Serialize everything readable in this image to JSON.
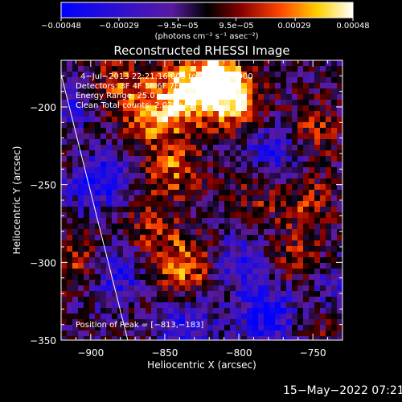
{
  "chart_data": {
    "type": "heatmap",
    "title": "Reconstructed RHESSI Image",
    "xlabel": "Heliocentric X (arcsec)",
    "ylabel": "Heliocentric Y (arcsec)",
    "xlim": [
      -920,
      -730
    ],
    "ylim": [
      -350,
      -170
    ],
    "x_ticks": [
      -900,
      -850,
      -800,
      -750
    ],
    "x_tick_labels": [
      "−900",
      "−850",
      "−800",
      "−750"
    ],
    "y_ticks": [
      -350,
      -300,
      -250,
      -200
    ],
    "y_tick_labels": [
      "−350",
      "−300",
      "−250",
      "−200"
    ],
    "colorbar": {
      "range": [
        -0.00048,
        0.00048
      ],
      "ticks": [
        -0.00048,
        -0.00029,
        -9.5e-05,
        9.5e-05,
        0.00029,
        0.00048
      ],
      "tick_labels": [
        "−0.00048",
        "−0.00029",
        "−9.5e−05",
        "9.5e−05",
        "0.00029",
        "0.00048"
      ],
      "unit_label": "(photons cm⁻² s⁻¹ asec⁻²)",
      "colors": [
        "#0000ff",
        "#5a1aa0",
        "#000000",
        "#8b0000",
        "#ff4500",
        "#ffd000",
        "#ffffff"
      ]
    },
    "annotations": [
      "4−Jul−2013 22:21:16.000 to 22:27:16.000",
      "Detectors: 3F 4F 5F 6F 7F 8F, AIA0",
      "Energy Range: 25.0 − 50.0 keV",
      "Clean    Total counts: 2.02E+02"
    ],
    "peak_label": "Position of Peak = [−813,−183]",
    "peak": [
      -813,
      -183
    ],
    "hot_regions": [
      {
        "x": -815,
        "y": -186,
        "intensity": 1.0
      },
      {
        "x": -835,
        "y": -190,
        "intensity": 0.85
      },
      {
        "x": -858,
        "y": -205,
        "intensity": 0.7
      },
      {
        "x": -880,
        "y": -185,
        "intensity": 0.6
      },
      {
        "x": -800,
        "y": -198,
        "intensity": 0.6
      },
      {
        "x": -845,
        "y": -240,
        "intensity": 0.65
      },
      {
        "x": -835,
        "y": -303,
        "intensity": 0.8
      },
      {
        "x": -860,
        "y": -280,
        "intensity": 0.45
      },
      {
        "x": -910,
        "y": -300,
        "intensity": 0.5
      },
      {
        "x": -750,
        "y": -215,
        "intensity": 0.5
      },
      {
        "x": -755,
        "y": -260,
        "intensity": 0.45
      },
      {
        "x": -790,
        "y": -258,
        "intensity": 0.35
      },
      {
        "x": -760,
        "y": -300,
        "intensity": 0.45
      },
      {
        "x": -745,
        "y": -335,
        "intensity": 0.4
      },
      {
        "x": -905,
        "y": -230,
        "intensity": 0.35
      },
      {
        "x": -870,
        "y": -320,
        "intensity": 0.3
      }
    ],
    "cold_regions": [
      {
        "x": -895,
        "y": -245,
        "intensity": -0.9
      },
      {
        "x": -880,
        "y": -310,
        "intensity": -0.8
      },
      {
        "x": -775,
        "y": -228,
        "intensity": -0.6
      },
      {
        "x": -800,
        "y": -300,
        "intensity": -0.5
      },
      {
        "x": -780,
        "y": -335,
        "intensity": -0.8
      },
      {
        "x": -740,
        "y": -320,
        "intensity": -0.5
      },
      {
        "x": -835,
        "y": -340,
        "intensity": -0.6
      },
      {
        "x": -910,
        "y": -200,
        "intensity": -0.4
      }
    ],
    "limb_line": {
      "from": [
        -920,
        -179
      ],
      "to": [
        -875,
        -350
      ]
    },
    "grid": false
  },
  "footer": {
    "date": "15−May−2022 07:21"
  }
}
